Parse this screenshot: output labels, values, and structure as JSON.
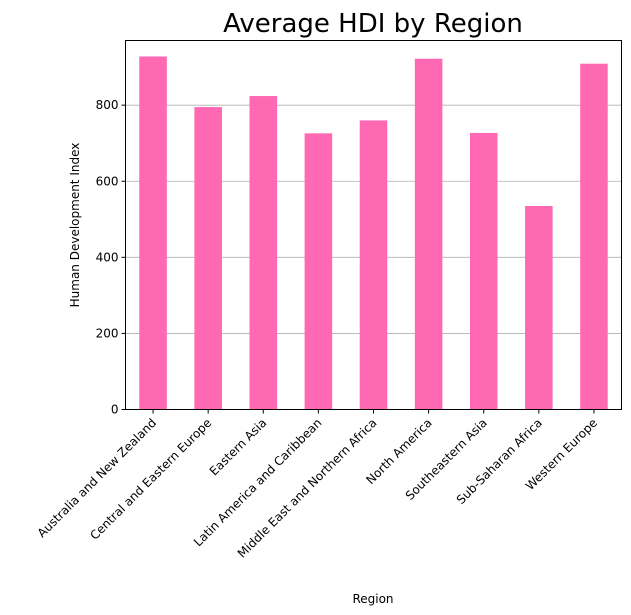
{
  "chart_data": {
    "type": "bar",
    "title": "Average HDI by Region",
    "xlabel": "Region",
    "ylabel": "Human Development Index",
    "categories": [
      "Australia and New Zealand",
      "Central and Eastern Europe",
      "Eastern Asia",
      "Latin America and Caribbean",
      "Middle East and Northern Africa",
      "North America",
      "Southeastern Asia",
      "Sub-Saharan Africa",
      "Western Europe"
    ],
    "values": [
      928,
      795,
      824,
      726,
      760,
      922,
      727,
      535,
      909
    ],
    "yticks": [
      "0",
      "200",
      "400",
      "600",
      "800"
    ],
    "ylim": [
      0,
      970
    ],
    "grid": "horizontal",
    "bar_color": "#ff69b4"
  }
}
